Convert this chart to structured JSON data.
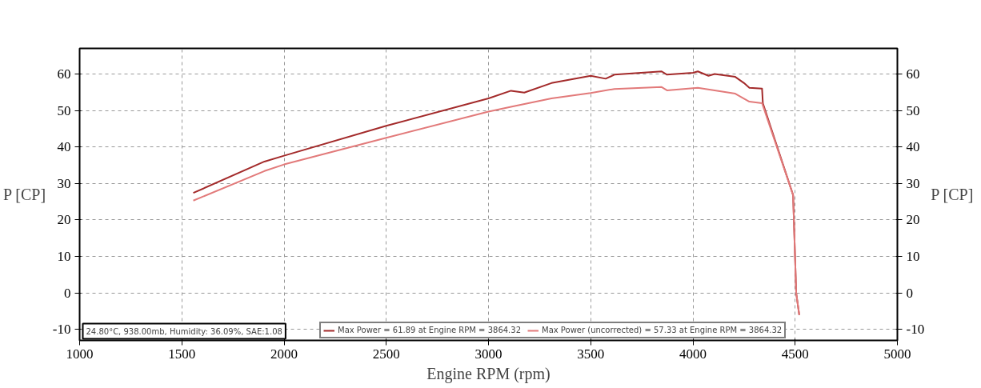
{
  "chart_data": {
    "type": "line",
    "xlabel": "Engine RPM (rpm)",
    "ylabel": "P [CP]",
    "y2label": "P [CP]",
    "annotations": [
      "24.80°C, 938.00mb, Humidity: 36.09%, SAE:1.08"
    ],
    "series": [
      {
        "name": "Max Power = 61.89 at Engine RPM = 3864.32",
        "color": "#a32a2a",
        "x": [
          1556,
          1904,
          2000,
          2500,
          3000,
          3110,
          3175,
          3308,
          3500,
          3573,
          3616,
          3847,
          3873,
          4000,
          4024,
          4076,
          4106,
          4207,
          4250,
          4276,
          4338,
          4342,
          4490,
          4505,
          4520
        ],
        "values": [
          27.4,
          36,
          37.6,
          45.8,
          53.3,
          55.4,
          54.9,
          57.5,
          59.5,
          58.7,
          59.8,
          60.7,
          59.8,
          60.3,
          60.7,
          59.5,
          60,
          59.2,
          57.5,
          56.2,
          56,
          52,
          26.8,
          0,
          -6
        ]
      },
      {
        "name": "Max Power (uncorrected) = 57.33 at Engine RPM = 3864.32",
        "color": "#e27a7a",
        "x": [
          1556,
          1904,
          2000,
          2500,
          3000,
          3110,
          3308,
          3500,
          3616,
          3847,
          3873,
          4024,
          4207,
          4276,
          4338,
          4490,
          4505,
          4520
        ],
        "values": [
          25.3,
          33.4,
          35.2,
          42.5,
          49.7,
          51,
          53.3,
          54.8,
          55.9,
          56.4,
          55.5,
          56.2,
          54.6,
          52.4,
          52,
          26.8,
          0,
          -6
        ]
      }
    ],
    "xlim": [
      1000,
      5000
    ],
    "xticks": [
      1000,
      1500,
      2000,
      2500,
      3000,
      3500,
      4000,
      4500,
      5000
    ],
    "ylim": [
      -13,
      67
    ],
    "yticks": [
      -10,
      0,
      10,
      20,
      30,
      40,
      50,
      60
    ],
    "y2lim": [
      -13,
      67
    ],
    "y2ticks": [
      -10,
      0,
      10,
      20,
      30,
      40,
      50,
      60
    ],
    "grid": true,
    "legend": "bottom",
    "line_style": "solid",
    "marker": "none"
  }
}
